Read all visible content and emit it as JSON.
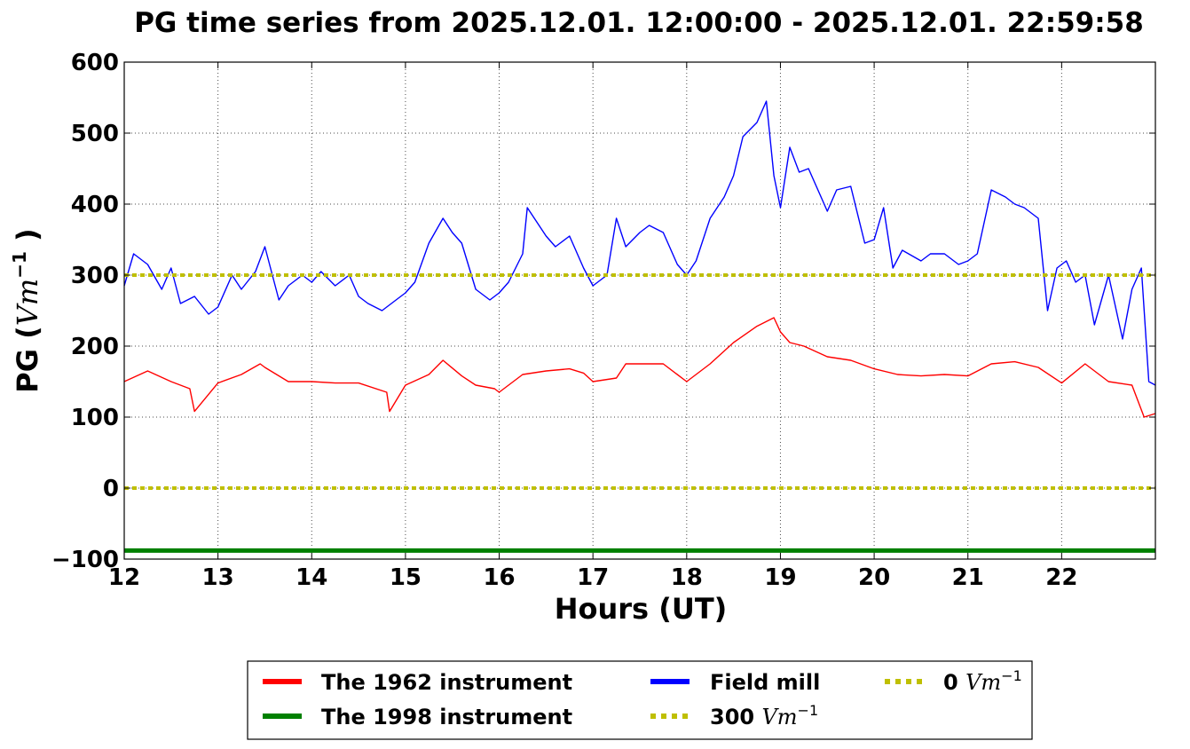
{
  "chart_data": {
    "type": "line",
    "title": "PG time series from 2025.12.01. 12:00:00 - 2025.12.01. 22:59:58",
    "xlabel": "Hours (UT)",
    "ylabel_prefix": "PG (",
    "ylabel_unit": "Vm",
    "ylabel_exp": "−1",
    "ylabel_suffix": " )",
    "xlim": [
      12,
      23
    ],
    "ylim": [
      -100,
      600
    ],
    "x_ticks": [
      12,
      13,
      14,
      15,
      16,
      17,
      18,
      19,
      20,
      21,
      22
    ],
    "y_ticks": [
      -100,
      0,
      100,
      200,
      300,
      400,
      500,
      600
    ],
    "y_tick_labels": [
      "−100",
      "0",
      "100",
      "200",
      "300",
      "400",
      "500",
      "600"
    ],
    "grid": true,
    "legend_position": "below",
    "series": [
      {
        "name": "The 1962 instrument",
        "color": "#ff0000",
        "x": [
          12.0,
          12.25,
          12.5,
          12.7,
          12.75,
          13.0,
          13.25,
          13.45,
          13.5,
          13.75,
          14.0,
          14.25,
          14.5,
          14.8,
          14.83,
          15.0,
          15.25,
          15.4,
          15.6,
          15.75,
          15.95,
          16.0,
          16.25,
          16.5,
          16.75,
          16.9,
          17.0,
          17.25,
          17.35,
          17.5,
          17.75,
          18.0,
          18.25,
          18.5,
          18.75,
          18.93,
          19.0,
          19.1,
          19.25,
          19.5,
          19.75,
          20.0,
          20.25,
          20.5,
          20.75,
          21.0,
          21.25,
          21.5,
          21.75,
          22.0,
          22.25,
          22.5,
          22.75,
          22.88,
          23.0
        ],
        "values": [
          150,
          165,
          150,
          140,
          108,
          148,
          160,
          175,
          170,
          150,
          150,
          148,
          148,
          135,
          108,
          145,
          160,
          180,
          158,
          145,
          140,
          135,
          160,
          165,
          168,
          162,
          150,
          155,
          175,
          175,
          175,
          150,
          175,
          205,
          228,
          240,
          220,
          205,
          200,
          185,
          180,
          168,
          160,
          158,
          160,
          158,
          175,
          178,
          170,
          148,
          175,
          150,
          145,
          100,
          105
        ]
      },
      {
        "name": "The 1998 instrument",
        "color": "#008000",
        "x": [
          12.0,
          23.0
        ],
        "values": [
          -88,
          -88
        ]
      },
      {
        "name": "Field mill",
        "color": "#0000ff",
        "x": [
          12.0,
          12.1,
          12.25,
          12.4,
          12.5,
          12.6,
          12.75,
          12.9,
          13.0,
          13.15,
          13.25,
          13.4,
          13.5,
          13.65,
          13.75,
          13.9,
          14.0,
          14.1,
          14.25,
          14.4,
          14.5,
          14.6,
          14.75,
          14.9,
          15.0,
          15.1,
          15.25,
          15.4,
          15.5,
          15.6,
          15.75,
          15.9,
          16.0,
          16.1,
          16.25,
          16.3,
          16.5,
          16.6,
          16.75,
          16.9,
          17.0,
          17.15,
          17.25,
          17.35,
          17.5,
          17.6,
          17.75,
          17.9,
          18.0,
          18.1,
          18.25,
          18.4,
          18.5,
          18.6,
          18.75,
          18.85,
          18.93,
          19.0,
          19.1,
          19.2,
          19.3,
          19.5,
          19.6,
          19.75,
          19.9,
          20.0,
          20.1,
          20.2,
          20.3,
          20.5,
          20.6,
          20.75,
          20.9,
          21.0,
          21.1,
          21.25,
          21.4,
          21.5,
          21.6,
          21.75,
          21.85,
          21.95,
          22.05,
          22.15,
          22.25,
          22.35,
          22.5,
          22.65,
          22.75,
          22.85,
          22.93,
          23.0
        ],
        "values": [
          285,
          330,
          315,
          280,
          310,
          260,
          270,
          245,
          255,
          300,
          280,
          305,
          340,
          265,
          285,
          300,
          290,
          305,
          285,
          300,
          270,
          260,
          250,
          265,
          275,
          290,
          345,
          380,
          360,
          345,
          280,
          265,
          275,
          290,
          330,
          395,
          355,
          340,
          355,
          310,
          285,
          300,
          380,
          340,
          360,
          370,
          360,
          315,
          300,
          320,
          380,
          410,
          440,
          495,
          515,
          545,
          440,
          395,
          480,
          445,
          450,
          390,
          420,
          425,
          345,
          350,
          395,
          310,
          335,
          320,
          330,
          330,
          315,
          320,
          330,
          420,
          410,
          400,
          395,
          380,
          250,
          310,
          320,
          290,
          300,
          230,
          300,
          210,
          280,
          310,
          150,
          145
        ]
      },
      {
        "name": "300 Vm−1",
        "color": "#bfbf00",
        "dashed": true,
        "x": [
          12.0,
          23.0
        ],
        "values": [
          300,
          300
        ]
      },
      {
        "name": "0 Vm−1",
        "color": "#bfbf00",
        "dashed": true,
        "x": [
          12.0,
          23.0
        ],
        "values": [
          0,
          0
        ]
      }
    ],
    "legend": {
      "items": [
        {
          "label": "The 1962 instrument",
          "unit": "",
          "exp": "",
          "color": "#ff0000",
          "dashed": false
        },
        {
          "label": "The 1998 instrument",
          "unit": "",
          "exp": "",
          "color": "#008000",
          "dashed": false
        },
        {
          "label": "Field mill",
          "unit": "",
          "exp": "",
          "color": "#0000ff",
          "dashed": false
        },
        {
          "label": "300 ",
          "unit": "Vm",
          "exp": "−1",
          "color": "#bfbf00",
          "dashed": true
        },
        {
          "label": "0 ",
          "unit": "Vm",
          "exp": "−1",
          "color": "#bfbf00",
          "dashed": true
        }
      ]
    }
  }
}
